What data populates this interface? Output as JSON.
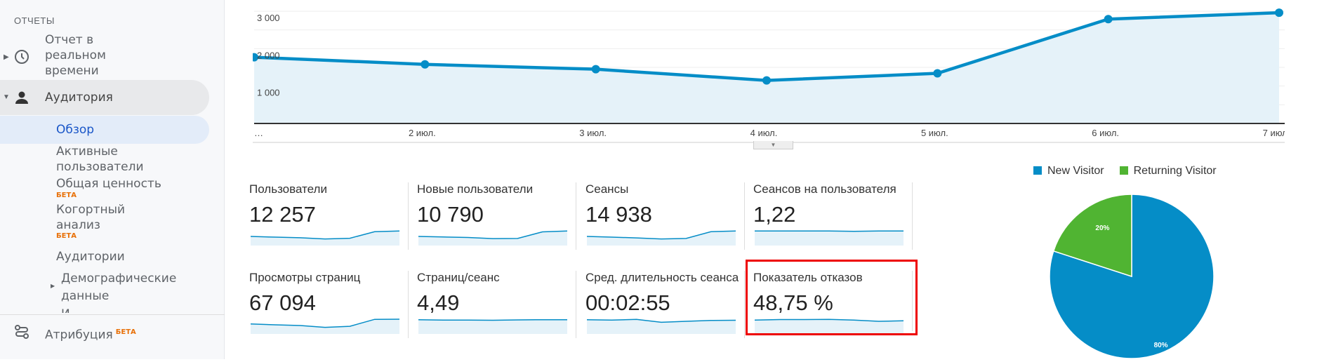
{
  "sidebar": {
    "section": "ОТЧЕТЫ",
    "realtime": "Отчет в реальном времени",
    "audience": "Аудитория",
    "items": [
      {
        "label": "Обзор",
        "active": true
      },
      {
        "label": "Активные пользователи"
      },
      {
        "label": "Общая ценность",
        "badge": "БЕТА"
      },
      {
        "label": "Когортный анализ",
        "badge": "БЕТА"
      },
      {
        "label": "Аудитории"
      },
      {
        "label": "Демографические данные"
      },
      {
        "label": "И..."
      }
    ],
    "attribution": "Атрибуция",
    "attribution_badge": "БЕТА"
  },
  "chart_data": {
    "type": "area",
    "x": [
      "…",
      "2 июл.",
      "3 июл.",
      "4 июл.",
      "5 июл.",
      "6 июл.",
      "7 июл."
    ],
    "values": [
      1770,
      1580,
      1450,
      1150,
      1340,
      2790,
      2960
    ],
    "yticks": [
      "1 000",
      "2 000",
      "3 000"
    ],
    "ylim": [
      0,
      3150
    ],
    "color": "#058dc7",
    "grid": true
  },
  "metrics": [
    {
      "title": "Пользователи",
      "value": "12 257",
      "spark": [
        5,
        4.6,
        4.3,
        3.6,
        4,
        7.6,
        8
      ]
    },
    {
      "title": "Новые пользователи",
      "value": "10 790",
      "spark": [
        5,
        4.7,
        4.4,
        3.8,
        3.9,
        7.5,
        8
      ]
    },
    {
      "title": "Сеансы",
      "value": "14 938",
      "spark": [
        5,
        4.6,
        4.2,
        3.6,
        3.9,
        7.6,
        8
      ]
    },
    {
      "title": "Сеансов на пользователя",
      "value": "1,22",
      "spark": [
        8,
        8,
        8,
        8,
        7.8,
        8,
        8
      ]
    },
    {
      "title": "Просмотры страниц",
      "value": "67 094",
      "spark": [
        5.5,
        5,
        4.6,
        3.6,
        4.2,
        8,
        8.1
      ]
    },
    {
      "title": "Страниц/сеанс",
      "value": "4,49",
      "spark": [
        7.8,
        7.6,
        7.6,
        7.5,
        7.7,
        7.8,
        7.8
      ]
    },
    {
      "title": "Сред. длительность сеанса",
      "value": "00:02:55",
      "spark": [
        7.8,
        7.6,
        8,
        6.4,
        6.9,
        7.4,
        7.5
      ]
    },
    {
      "title": "Показатель отказов",
      "value": "48,75 %",
      "spark": [
        7.6,
        7.9,
        7.9,
        8,
        7.6,
        6.9,
        7.2
      ]
    }
  ],
  "pie": {
    "legend": [
      {
        "label": "New Visitor",
        "color": "#058dc7",
        "value": 80,
        "text": "80%"
      },
      {
        "label": "Returning Visitor",
        "color": "#50b432",
        "value": 20,
        "text": "20%"
      }
    ]
  }
}
